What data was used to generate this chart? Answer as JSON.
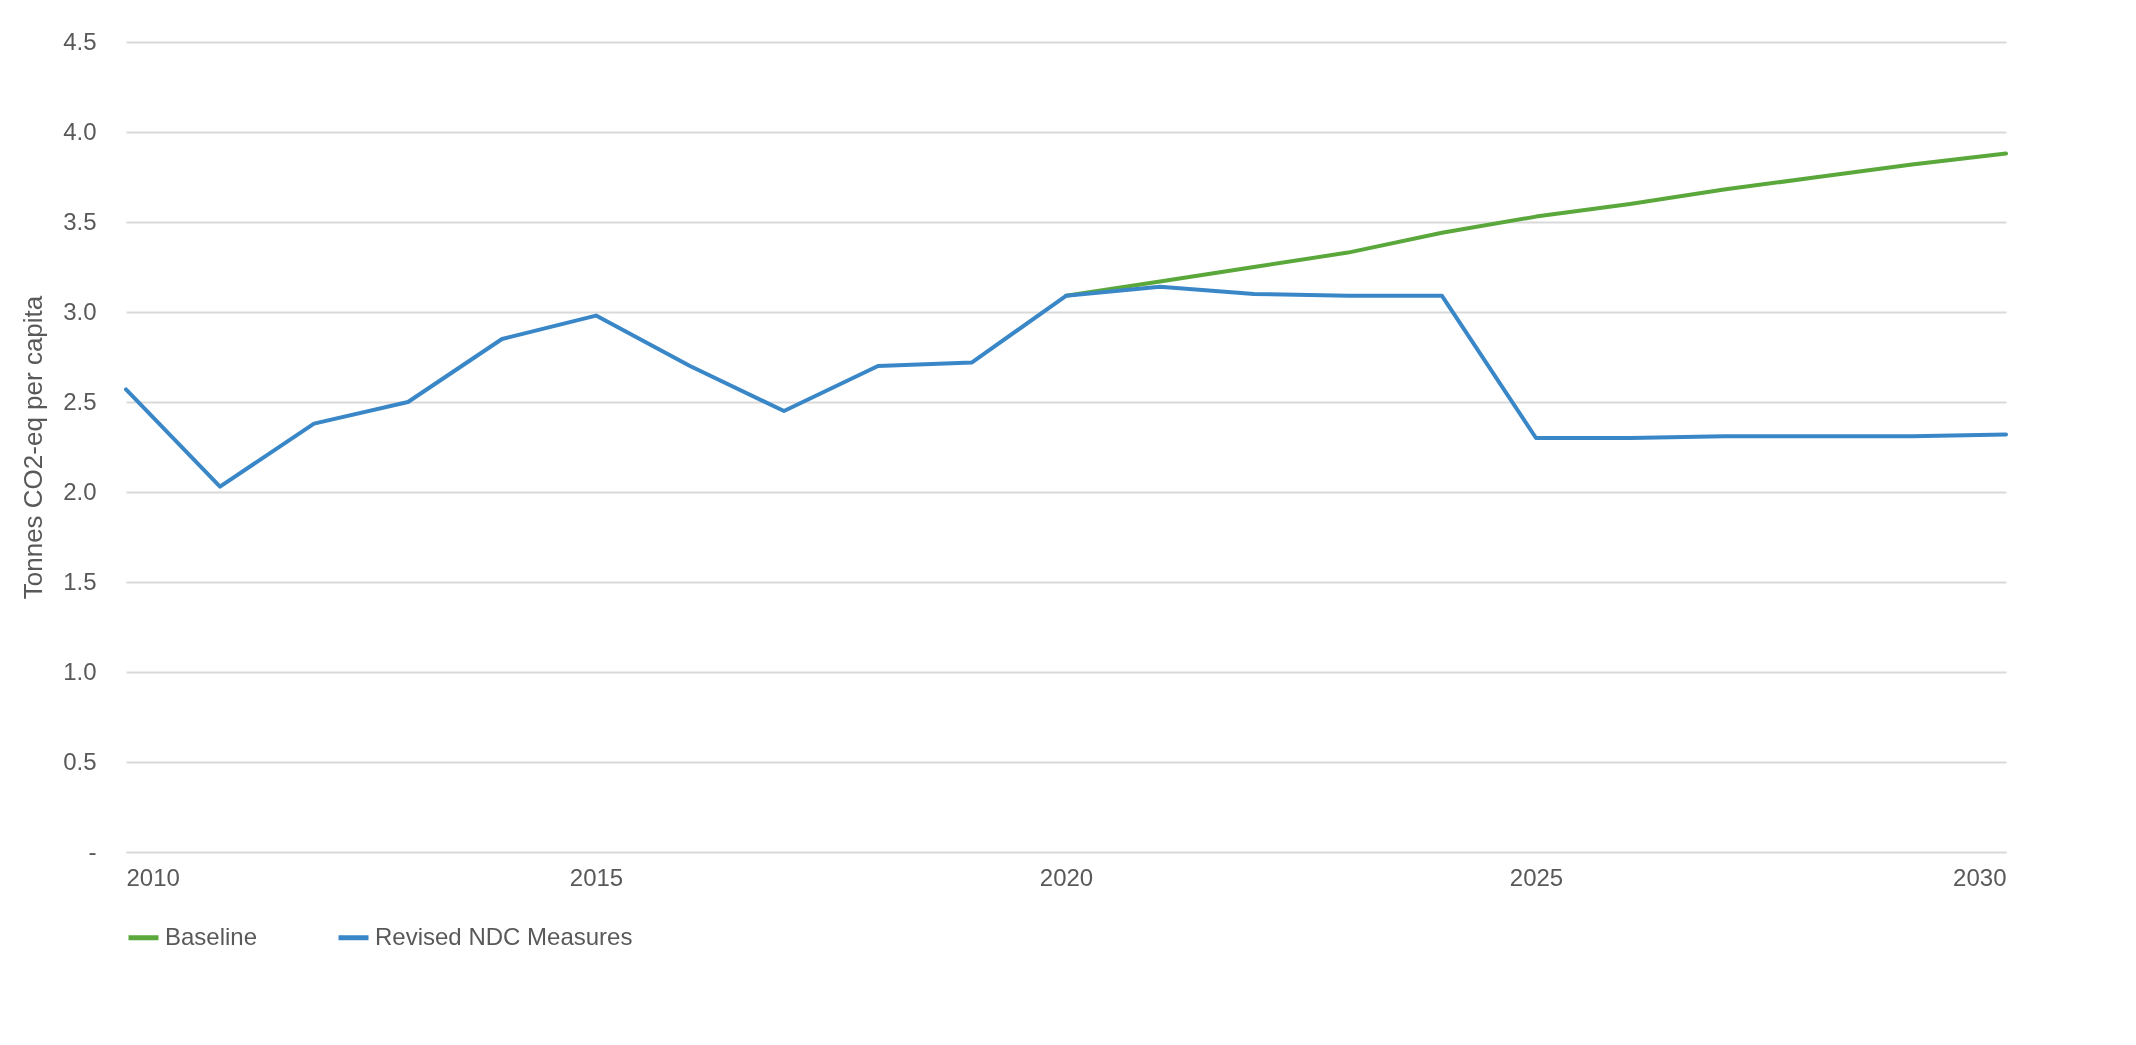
{
  "chart_data": {
    "type": "line",
    "ylabel": "Tonnes CO2-eq per capita",
    "x": [
      2010,
      2011,
      2012,
      2013,
      2014,
      2015,
      2016,
      2017,
      2018,
      2019,
      2020,
      2021,
      2022,
      2023,
      2024,
      2025,
      2026,
      2027,
      2028,
      2029,
      2030
    ],
    "series": [
      {
        "name": "Baseline",
        "color": "#5aa83c",
        "values": [
          null,
          null,
          null,
          null,
          null,
          null,
          null,
          null,
          null,
          null,
          3.09,
          3.17,
          3.25,
          3.33,
          3.44,
          3.53,
          3.6,
          3.68,
          3.75,
          3.82,
          3.88
        ]
      },
      {
        "name": "Revised NDC Measures",
        "color": "#3a87c8",
        "values": [
          2.57,
          2.03,
          2.38,
          2.5,
          2.85,
          2.98,
          2.7,
          2.45,
          2.7,
          2.72,
          3.09,
          3.14,
          3.1,
          3.09,
          3.09,
          2.3,
          2.3,
          2.31,
          2.31,
          2.31,
          2.32
        ]
      }
    ],
    "xlim": [
      2010,
      2030
    ],
    "xticks": [
      2010,
      2015,
      2020,
      2025,
      2030
    ],
    "ylim": [
      0,
      4.5
    ],
    "yticks": [
      {
        "value": 0,
        "label": "-"
      },
      0.5,
      {
        "value": 1,
        "label": "1.0"
      },
      1.5,
      {
        "value": 2,
        "label": "2.0"
      },
      2.5,
      {
        "value": 3,
        "label": "3.0"
      },
      3.5,
      {
        "value": 4,
        "label": "4.0"
      },
      4.5
    ],
    "grid": "y",
    "legend": "bottom",
    "marker": "none",
    "line_style": "solid"
  }
}
